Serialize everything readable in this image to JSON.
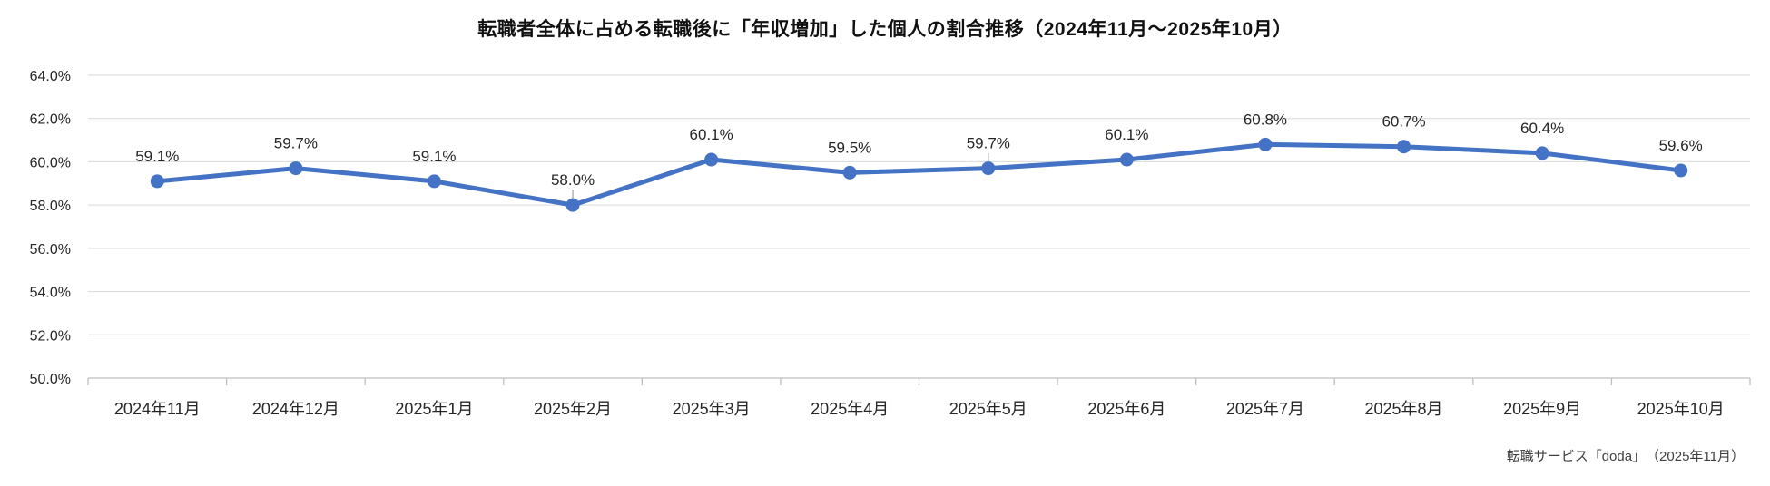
{
  "chart_data": {
    "type": "line",
    "title": "転職者全体に占める転職後に「年収増加」した個人の割合推移（2024年11月～2025年10月）",
    "source": "転職サービス「doda」　（2025年11月）",
    "categories": [
      "2024年11月",
      "2024年12月",
      "2025年1月",
      "2025年2月",
      "2025年3月",
      "2025年4月",
      "2025年5月",
      "2025年6月",
      "2025年7月",
      "2025年8月",
      "2025年9月",
      "2025年10月"
    ],
    "values": [
      59.1,
      59.7,
      59.1,
      58.0,
      60.1,
      59.5,
      59.7,
      60.1,
      60.8,
      60.7,
      60.4,
      59.6
    ],
    "data_labels": [
      "59.1%",
      "59.7%",
      "59.1%",
      "58.0%",
      "60.1%",
      "59.5%",
      "59.7%",
      "60.1%",
      "60.8%",
      "60.7%",
      "60.4%",
      "59.6%"
    ],
    "xlabel": "",
    "ylabel": "",
    "ylim": [
      50,
      64
    ],
    "ytick_values": [
      50,
      52,
      54,
      56,
      58,
      60,
      62,
      64
    ],
    "ytick_labels": [
      "50.0%",
      "52.0%",
      "54.0%",
      "56.0%",
      "58.0%",
      "60.0%",
      "62.0%",
      "64.0%"
    ],
    "grid": true,
    "legend": "none",
    "leader_line_indices": [
      3,
      6
    ],
    "colors": {
      "line": "#4472C4",
      "marker": "#4472C4",
      "grid": "#D9D9D9",
      "axis": "#BFBFBF",
      "leader": "#A6A6A6",
      "label": "#262626"
    }
  }
}
